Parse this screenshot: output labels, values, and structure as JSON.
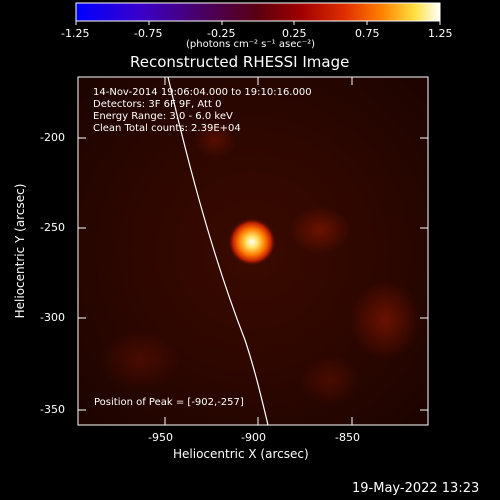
{
  "colorbar": {
    "tick_labels": [
      "-1.25",
      "-0.75",
      "-0.25",
      "0.25",
      "0.75",
      "1.25"
    ],
    "units_label": "(photons cm⁻² s⁻¹ asec⁻²)"
  },
  "plot": {
    "title": "Reconstructed RHESSI Image",
    "info_lines": [
      "14-Nov-2014 19:06:04.000 to 19:10:16.000",
      "Detectors: 3F 6F 9F, Att 0",
      "Energy Range: 3.0 - 6.0 keV",
      "Clean     Total counts: 2.39E+04"
    ],
    "peak_text": "Position of Peak = [-902,-257]",
    "x_ticks": [
      "-950",
      "-900",
      "-850"
    ],
    "y_ticks": [
      "-200",
      "-250",
      "-300",
      "-350"
    ],
    "x_label": "Heliocentric X (arcsec)",
    "y_label": "Heliocentric Y (arcsec)"
  },
  "footer": {
    "date": "19-May-2022 13:23"
  }
}
